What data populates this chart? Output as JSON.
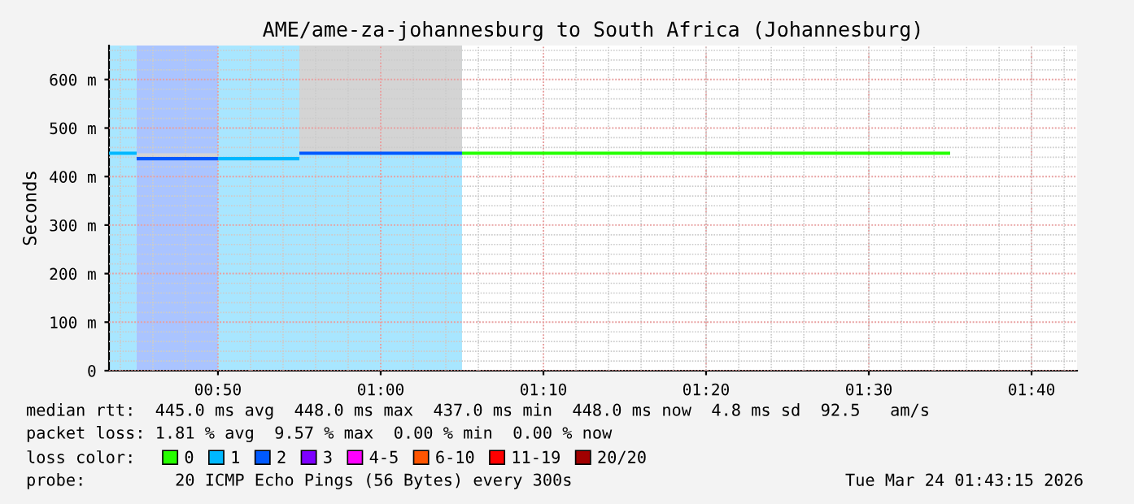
{
  "chart_data": {
    "type": "line",
    "title": "AME/ame-za-johannesburg to South Africa (Johannesburg)",
    "ylabel": "Seconds",
    "xlim": [
      0.7217,
      1.7133
    ],
    "ylim": [
      0,
      670
    ],
    "xticks": [
      {
        "value": 0.8333,
        "label": "00:50"
      },
      {
        "value": 1.0,
        "label": "01:00"
      },
      {
        "value": 1.1667,
        "label": "01:10"
      },
      {
        "value": 1.3333,
        "label": "01:20"
      },
      {
        "value": 1.5,
        "label": "01:30"
      },
      {
        "value": 1.6667,
        "label": "01:40"
      }
    ],
    "yticks": [
      0,
      {
        "value": 100,
        "label": "100 m"
      },
      {
        "value": 200,
        "label": "200 m"
      },
      {
        "value": 300,
        "label": "300 m"
      },
      {
        "value": 400,
        "label": "400 m"
      },
      {
        "value": 500,
        "label": "500 m"
      },
      {
        "value": 600,
        "label": "600 m"
      }
    ],
    "grid": true,
    "legend": "bottom",
    "legend_title": "loss color:",
    "line_style": "solid",
    "marker": "none",
    "bands": [
      {
        "axis": "x",
        "from": 0.7217,
        "to": 0.75,
        "color": "#a8e6ff"
      },
      {
        "axis": "x",
        "from": 0.75,
        "to": 0.8333,
        "color": "#aac4ff"
      },
      {
        "axis": "x",
        "from": 0.8333,
        "to": 1.0833,
        "color": "#a8e6ff"
      }
    ],
    "series": [
      {
        "name": "0",
        "color": "#26ff00",
        "x": [
          1.0833,
          1.5833
        ],
        "values": [
          448,
          448
        ]
      },
      {
        "name": "1",
        "color": "#00b8ff",
        "x": [
          0.7217,
          0.75
        ],
        "values": [
          448,
          448
        ]
      },
      {
        "color": "#00b8ff",
        "x": [
          0.8333,
          0.9167
        ],
        "values": [
          437,
          437
        ]
      },
      {
        "name": "2",
        "color": "#0059ff",
        "x": [
          0.75,
          0.8333
        ],
        "values": [
          437,
          437
        ],
        "lower": [
          437,
          437
        ],
        "upper": [
          448,
          448
        ]
      },
      {
        "color": "#0059ff",
        "x": [
          0.9167,
          1.0833
        ],
        "values": [
          448,
          448
        ],
        "lower": [
          448,
          448
        ],
        "upper": [
          670,
          670
        ]
      },
      {
        "name": "3",
        "color": "#7e00ff"
      },
      {
        "name": "4-5",
        "color": "#ff00ff"
      },
      {
        "name": "6-10",
        "color": "#ff5500"
      },
      {
        "name": "11-19",
        "color": "#ff0000"
      },
      {
        "name": "20/20",
        "color": "#a10000"
      }
    ],
    "annotations": [
      "median rtt:  445.0 ms avg  448.0 ms max  437.0 ms min  448.0 ms now  4.8 ms sd  92.5   am/s",
      "packet loss: 1.81 % avg  9.57 % max  0.00 % min  0.00 % now",
      "probe:         20 ICMP Echo Pings (56 Bytes) every 300s",
      "Tue Mar 24 01:43:15 2026"
    ]
  }
}
